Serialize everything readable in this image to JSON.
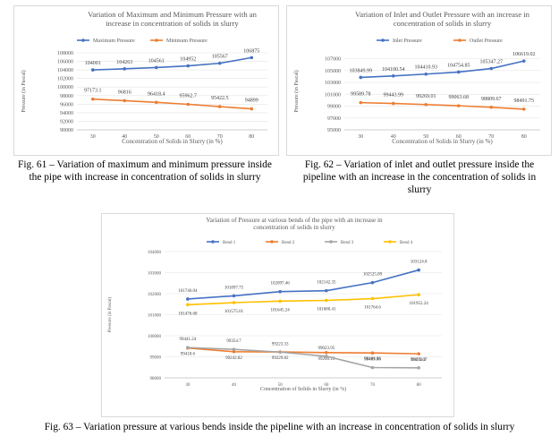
{
  "captions": {
    "fig61": [
      "Fig. 61 – Variation of maximum and minimum pressure inside",
      "the pipe with increase in concentration of solids in slurry"
    ],
    "fig62": [
      "Fig. 62 – Variation of inlet and outlet pressure inside the",
      "pipeline with an increase in the concentration of solids in",
      "slurry"
    ],
    "fig63": "Fig. 63 – Variation pressure at various bends inside the pipeline with an increase in concentration of solids in slurry"
  },
  "chart_data": [
    {
      "type": "line",
      "title": [
        "Variation of Maximum and Minimum Pressure with an",
        "increase in concentration of solids in slurry"
      ],
      "xlabel": "Concentration of Solids in Slurry (in %)",
      "ylabel": "Pressure (in Pascal)",
      "categories": [
        "30",
        "40",
        "50",
        "60",
        "70",
        "80"
      ],
      "ylim": [
        90000,
        108000
      ],
      "yticks": [
        "90000",
        "92000",
        "94000",
        "96000",
        "98000",
        "100000",
        "102000",
        "104000",
        "106000",
        "108000"
      ],
      "legend": "top",
      "series": [
        {
          "name": "Maximum Pressure",
          "color": "#4472c4",
          "values": [
            104001,
            104263,
            104561,
            104952,
            105567,
            106875
          ],
          "labels": [
            "104001",
            "104263",
            "104561",
            "104952",
            "105567",
            "106875"
          ]
        },
        {
          "name": "Minimum Pressure",
          "color": "#ed7d31",
          "values": [
            97173.1,
            96816,
            96418.4,
            95962.7,
            95422.5,
            94899
          ],
          "labels": [
            "97173.1",
            "96816",
            "96418.4",
            "95962.7",
            "95422.5",
            "94899"
          ]
        }
      ]
    },
    {
      "type": "line",
      "title": [
        "Variation of Inlet and Outlet Pressure with an increase in",
        "concentration of solids in slurry"
      ],
      "xlabel": "Concentration of Solids in Slurry (in %)",
      "ylabel": "Pressure (in Pascal)",
      "categories": [
        "30",
        "40",
        "50",
        "60",
        "70",
        "80"
      ],
      "ylim": [
        95000,
        108000
      ],
      "yticks": [
        "95000",
        "97000",
        "99000",
        "101000",
        "103000",
        "105000",
        "107000"
      ],
      "legend": "top",
      "series": [
        {
          "name": "Inlet Pressure",
          "color": "#4472c4",
          "values": [
            103849.99,
            104100.54,
            104410.93,
            104754.85,
            105347.27,
            106619.02
          ],
          "labels": [
            "103849.99",
            "104100.54",
            "104410.93",
            "104754.85",
            "105347.27",
            "106619.02"
          ]
        },
        {
          "name": "Outlet Pressure",
          "color": "#ed7d31",
          "values": [
            99589.78,
            99443.99,
            99269.01,
            99063.68,
            98809.67,
            98491.75
          ],
          "labels": [
            "99589.78",
            "99443.99",
            "99269.01",
            "99063.68",
            "98809.67",
            "98491.75"
          ]
        }
      ]
    },
    {
      "type": "line",
      "title": [
        "Variation of Pressure at various bends of the pipe with an increase in",
        "concentration of solids in slurry"
      ],
      "xlabel": "Concentration of Solids in Slurry (in %)",
      "ylabel": "Pressure (in Pascal)",
      "categories": [
        "30",
        "40",
        "50",
        "60",
        "70",
        "80"
      ],
      "ylim": [
        98000,
        104000
      ],
      "yticks": [
        "98000",
        "99000",
        "100000",
        "101000",
        "102000",
        "103000",
        "104000"
      ],
      "legend": "top",
      "series": [
        {
          "name": "Bend 1",
          "color": "#4472c4",
          "values": [
            101746.04,
            101897.75,
            102097.46,
            102142.35,
            102525.89,
            103124.8
          ],
          "labels": [
            "101746.04",
            "101897.75",
            "102097.46",
            "102142.35",
            "102525.89",
            "103124.8"
          ]
        },
        {
          "name": "Bend 2",
          "color": "#ed7d31",
          "values": [
            99418.6,
            99242.82,
            99229.82,
            99200.13,
            99181.86,
            99143.2
          ],
          "labels": [
            "99418.6",
            "99242.82",
            "99229.82",
            "99200.13",
            "99181.86",
            "99143.2"
          ]
        },
        {
          "name": "Bend 3",
          "color": "#a5a5a5",
          "values": [
            99441.24,
            99354.7,
            99223.33,
            99023.95,
            98489.16,
            98476.07
          ],
          "labels": [
            "99441.24",
            "99354.7",
            "99223.33",
            "99023.95",
            "98489.16",
            "98476.07"
          ]
        },
        {
          "name": "Bend 4",
          "color": "#ffc000",
          "values": [
            101476.68,
            101575.01,
            101645.24,
            101680.41,
            101764.6,
            101952.24
          ],
          "labels": [
            "101476.68",
            "101575.01",
            "101645.24",
            "101680.41",
            "101764.6",
            "101952.24"
          ]
        }
      ]
    }
  ]
}
